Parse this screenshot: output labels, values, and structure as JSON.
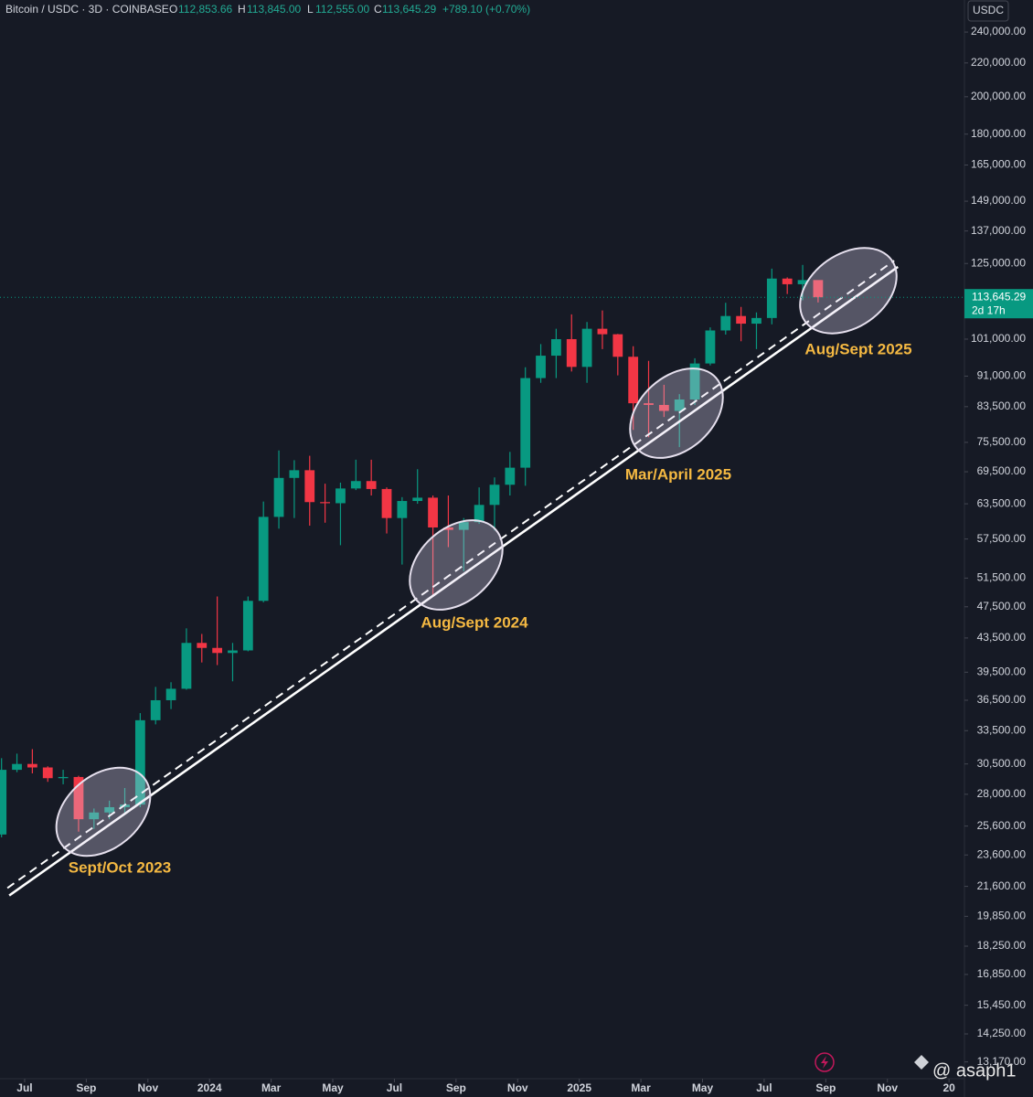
{
  "header": {
    "symbol": "Bitcoin / USDC · 3D · COINBASE",
    "o_label": "O",
    "open": "112,853.66",
    "h_label": "H",
    "high": "113,845.00",
    "l_label": "L",
    "low": "112,555.00",
    "c_label": "C",
    "close": "113,645.29",
    "change": "+789.10 (+0.70%)"
  },
  "currency": "USDC",
  "countdown": "2d 17h",
  "watermark": "@ asaph1",
  "chart_data": {
    "type": "candlestick",
    "log_scale": true,
    "grid": false,
    "up_color": "#089981",
    "down_color": "#f23645",
    "xlim": [
      -0.8,
      30.5
    ],
    "xticks": [
      {
        "value": 0,
        "label": "Jul"
      },
      {
        "value": 2,
        "label": "Sep"
      },
      {
        "value": 4,
        "label": "Nov"
      },
      {
        "value": 6,
        "label": "2024"
      },
      {
        "value": 8,
        "label": "Mar"
      },
      {
        "value": 10,
        "label": "May"
      },
      {
        "value": 12,
        "label": "Jul"
      },
      {
        "value": 14,
        "label": "Sep"
      },
      {
        "value": 16,
        "label": "Nov"
      },
      {
        "value": 18,
        "label": "2025"
      },
      {
        "value": 20,
        "label": "Mar"
      },
      {
        "value": 22,
        "label": "May"
      },
      {
        "value": 24,
        "label": "Jul"
      },
      {
        "value": 26,
        "label": "Sep"
      },
      {
        "value": 28,
        "label": "Nov"
      },
      {
        "value": 30,
        "label": "20"
      }
    ],
    "ylim": [
      12560,
      262700
    ],
    "yticks": [
      {
        "value": 240000,
        "label": "240,000.00"
      },
      {
        "value": 220000,
        "label": "220,000.00"
      },
      {
        "value": 200000,
        "label": "200,000.00"
      },
      {
        "value": 180000,
        "label": "180,000.00"
      },
      {
        "value": 165000,
        "label": "165,000.00"
      },
      {
        "value": 149000,
        "label": "149,000.00"
      },
      {
        "value": 137000,
        "label": "137,000.00"
      },
      {
        "value": 125000,
        "label": "125,000.00"
      },
      {
        "value": 101000,
        "label": "101,000.00"
      },
      {
        "value": 91000,
        "label": "91,000.00"
      },
      {
        "value": 83500,
        "label": "83,500.00"
      },
      {
        "value": 75500,
        "label": "75,500.00"
      },
      {
        "value": 69500,
        "label": "69,500.00"
      },
      {
        "value": 63500,
        "label": "63,500.00"
      },
      {
        "value": 57500,
        "label": "57,500.00"
      },
      {
        "value": 51500,
        "label": "51,500.00"
      },
      {
        "value": 47500,
        "label": "47,500.00"
      },
      {
        "value": 43500,
        "label": "43,500.00"
      },
      {
        "value": 39500,
        "label": "39,500.00"
      },
      {
        "value": 36500,
        "label": "36,500.00"
      },
      {
        "value": 33500,
        "label": "33,500.00"
      },
      {
        "value": 30500,
        "label": "30,500.00"
      },
      {
        "value": 28000,
        "label": "28,000.00"
      },
      {
        "value": 25600,
        "label": "25,600.00"
      },
      {
        "value": 23600,
        "label": "23,600.00"
      },
      {
        "value": 21600,
        "label": "21,600.00"
      },
      {
        "value": 19850,
        "label": "19,850.00"
      },
      {
        "value": 18250,
        "label": "18,250.00"
      },
      {
        "value": 16850,
        "label": "16,850.00"
      },
      {
        "value": 15450,
        "label": "15,450.00"
      },
      {
        "value": 14250,
        "label": "14,250.00"
      },
      {
        "value": 13170,
        "label": "13,170.00"
      }
    ],
    "x": [
      -0.75,
      -0.25,
      0.25,
      0.75,
      1.25,
      1.75,
      2.25,
      2.75,
      3.25,
      3.75,
      4.25,
      4.75,
      5.25,
      5.75,
      6.25,
      6.75,
      7.25,
      7.75,
      8.25,
      8.75,
      9.25,
      9.75,
      10.25,
      10.75,
      11.25,
      11.75,
      12.25,
      12.75,
      13.25,
      13.75,
      14.25,
      14.75,
      15.25,
      15.75,
      16.25,
      16.75,
      17.25,
      17.75,
      18.25,
      18.75,
      19.25,
      19.75,
      20.25,
      20.75,
      21.25,
      21.75,
      22.25,
      22.75,
      23.25,
      23.75,
      24.25,
      24.75,
      25.25,
      25.75
    ],
    "open": [
      25000,
      30000,
      30500,
      30200,
      29300,
      29400,
      26100,
      26600,
      27000,
      27200,
      34500,
      36500,
      37700,
      42900,
      42300,
      41700,
      42000,
      48300,
      61200,
      68300,
      69800,
      63800,
      63600,
      66300,
      67700,
      66200,
      61000,
      64000,
      64600,
      59400,
      59000,
      60300,
      63300,
      67000,
      70300,
      90500,
      96400,
      101000,
      93400,
      104000,
      102400,
      96100,
      84300,
      83900,
      82500,
      85200,
      94300,
      103500,
      107800,
      105500,
      107200,
      119800,
      117900,
      119300
    ],
    "high": [
      31000,
      31400,
      31800,
      30300,
      30000,
      29500,
      26900,
      27500,
      28500,
      35200,
      37900,
      38400,
      44700,
      44000,
      48900,
      42900,
      48900,
      63900,
      73800,
      71800,
      72700,
      67200,
      67400,
      71900,
      71900,
      66500,
      64700,
      70000,
      65000,
      65000,
      61000,
      66500,
      68400,
      73500,
      93300,
      99600,
      104000,
      108300,
      106000,
      109500,
      102500,
      99000,
      95000,
      88800,
      86500,
      95700,
      104400,
      111900,
      110600,
      108900,
      123200,
      120200,
      124500,
      117600
    ],
    "low": [
      24800,
      29800,
      29700,
      29000,
      28800,
      25200,
      25400,
      26100,
      26600,
      27000,
      34100,
      35600,
      37600,
      40600,
      40300,
      38500,
      41900,
      48100,
      59200,
      61000,
      59700,
      60200,
      56500,
      66000,
      65000,
      58400,
      53500,
      63500,
      49100,
      56200,
      52500,
      60000,
      58900,
      65000,
      66800,
      89300,
      90500,
      92200,
      89300,
      98200,
      91200,
      78200,
      76600,
      81100,
      74500,
      83900,
      93800,
      102300,
      100400,
      98200,
      105300,
      114700,
      112700,
      112000
    ],
    "close": [
      30000,
      30500,
      30200,
      29300,
      29400,
      26100,
      26600,
      27000,
      27200,
      34500,
      36500,
      37700,
      42900,
      42300,
      41700,
      42000,
      48300,
      61200,
      68300,
      69800,
      63800,
      63600,
      66300,
      67700,
      66200,
      61000,
      64000,
      64600,
      59400,
      59000,
      60300,
      63300,
      67000,
      70300,
      90500,
      96400,
      101000,
      93400,
      104000,
      102400,
      96100,
      84300,
      83900,
      82500,
      85200,
      94300,
      103500,
      107800,
      105500,
      107200,
      119800,
      117900,
      119300,
      113645.29
    ],
    "last_price": {
      "value": 113645.29,
      "label": "113,645.29"
    },
    "trendlines": [
      {
        "style": "solid",
        "points": [
          [
            -0.5,
            21050
          ],
          [
            28.34,
            123800
          ]
        ]
      },
      {
        "style": "dashed",
        "points": [
          [
            -0.56,
            21500
          ],
          [
            28.22,
            126000
          ]
        ]
      }
    ],
    "annotations": [
      "Sept/Oct 2023",
      "Aug/Sept 2024",
      "Mar/April 2025",
      "Aug/Sept 2025"
    ]
  }
}
